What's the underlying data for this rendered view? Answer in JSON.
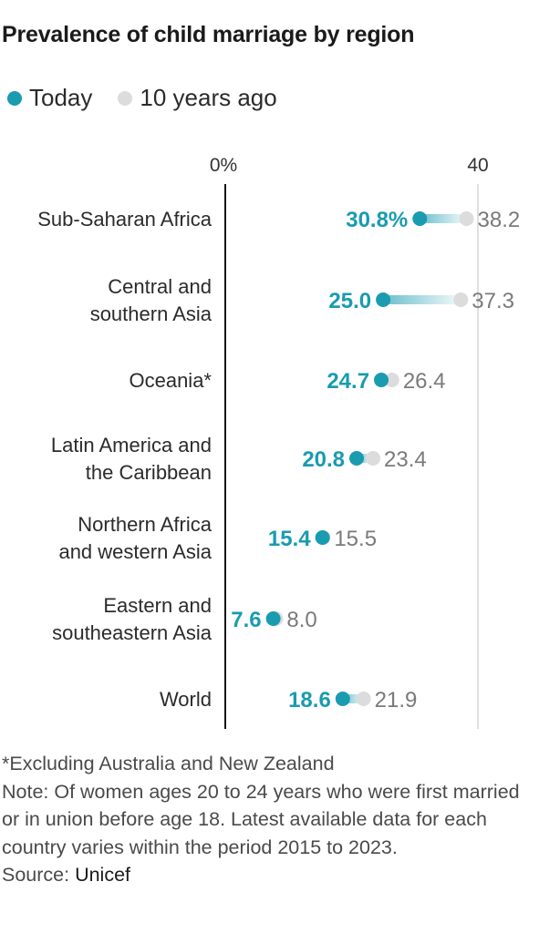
{
  "title": "Prevalence of child marriage by region",
  "legend": {
    "today": "Today",
    "ten_years_ago": "10 years ago"
  },
  "colors": {
    "today": "#1a9bb0",
    "ten_years_ago": "#dcdcdc",
    "axis": "#111111",
    "grid": "#d6d6d6",
    "old_label": "#7a7a7a"
  },
  "chart_data": {
    "type": "dot",
    "x_axis": {
      "min": 0,
      "max": 40,
      "ticks": [
        "0%",
        "40"
      ]
    },
    "categories": [
      [
        "Sub-Saharan Africa"
      ],
      [
        "Central and",
        "southern Asia"
      ],
      [
        "Oceania*"
      ],
      [
        "Latin America and",
        "the Caribbean"
      ],
      [
        "Northern Africa",
        "and western Asia"
      ],
      [
        "Eastern and",
        "southeastern Asia"
      ],
      [
        "World"
      ]
    ],
    "series": [
      {
        "name": "Today",
        "values": [
          30.8,
          25.0,
          24.7,
          20.8,
          15.4,
          7.6,
          18.6
        ],
        "labels": [
          "30.8%",
          "25.0",
          "24.7",
          "20.8",
          "15.4",
          "7.6",
          "18.6"
        ]
      },
      {
        "name": "10 years ago",
        "values": [
          38.2,
          37.3,
          26.4,
          23.4,
          15.5,
          8.0,
          21.9
        ],
        "labels": [
          "38.2",
          "37.3",
          "26.4",
          "23.4",
          "15.5",
          "8.0",
          "21.9"
        ]
      }
    ]
  },
  "notes": {
    "footnote": "*Excluding Australia and New Zealand",
    "note": "Note: Of women ages 20 to 24 years who were first married or in union before age 18. Latest available data for each country varies within the period 2015 to 2023.",
    "source_label": "Source: ",
    "source_value": "Unicef"
  }
}
